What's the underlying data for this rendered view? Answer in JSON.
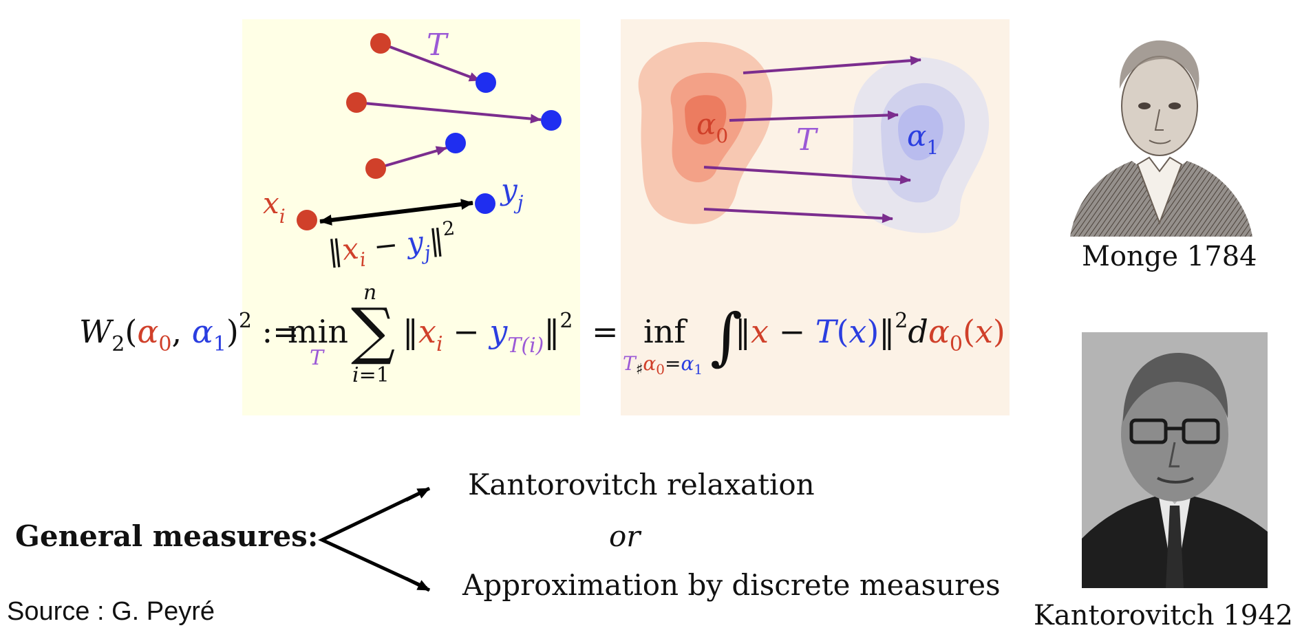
{
  "panels": {
    "discrete": {
      "map_label": "T",
      "source_point_label": "x_i",
      "target_point_label": "y_j",
      "cost_label": "‖x_i − y_j‖²"
    },
    "continuous": {
      "source_measure_label": "α_0",
      "target_measure_label": "α_1",
      "map_label": "T"
    }
  },
  "formula": {
    "lhs": "W_2(α_0, α_1)^2 :=",
    "discrete_part": "min_T Σ_{i=1}^{n} ‖x_i − y_{T(i)}‖²",
    "equals": "=",
    "continuous_part": "inf_{T♯α_0=α_1} ∫ ‖x − T(x)‖² dα_0(x)"
  },
  "bottom": {
    "general_label": "General measures:",
    "option_a": "Kantorovitch relaxation",
    "or_word": "or",
    "option_b": "Approximation by discrete measures"
  },
  "source": "Source : G. Peyré",
  "portraits": {
    "monge_caption": "Monge 1784",
    "kantorovitch_caption": "Kantorovitch 1942"
  },
  "colors": {
    "source": "#d0402a",
    "target": "#2b3ee0",
    "map": "#7b2d8e",
    "map_label": "#9b59d6",
    "panel_discrete_bg": "#ffffe6",
    "panel_continuous_bg": "#fcf2e6"
  }
}
